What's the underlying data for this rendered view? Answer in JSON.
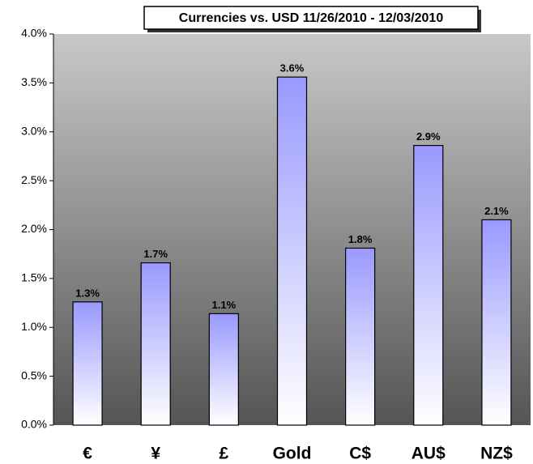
{
  "chart_data": {
    "type": "bar",
    "title": "Currencies vs. USD 11/26/2010 - 12/03/2010",
    "categories": [
      "€",
      "¥",
      "£",
      "Gold",
      "C$",
      "AU$",
      "NZ$"
    ],
    "values": [
      1.26,
      1.66,
      1.14,
      3.56,
      1.81,
      2.86,
      2.1
    ],
    "value_labels": [
      "1.3%",
      "1.7%",
      "1.1%",
      "3.6%",
      "1.8%",
      "2.9%",
      "2.1%"
    ],
    "color": "#9999ff",
    "ylim": [
      0,
      4
    ],
    "yticks": [
      {
        "value": 0,
        "label": "0.0%"
      },
      {
        "value": 0.5,
        "label": "0.5%"
      },
      {
        "value": 1,
        "label": "1.0%"
      },
      {
        "value": 1.5,
        "label": "1.5%"
      },
      {
        "value": 2,
        "label": "2.0%"
      },
      {
        "value": 2.5,
        "label": "2.5%"
      },
      {
        "value": 3,
        "label": "3.0%"
      },
      {
        "value": 3.5,
        "label": "3.5%"
      },
      {
        "value": 4,
        "label": "4.0%"
      }
    ]
  }
}
